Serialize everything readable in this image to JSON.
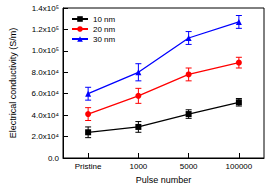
{
  "chart_data": {
    "type": "line",
    "x_label": "Pulse number",
    "y_label": "Electrical conductivity (S/m)",
    "categories": [
      "Pristine",
      "1000",
      "5000",
      "100000"
    ],
    "ylim": [
      0,
      140000
    ],
    "yticks": [
      {
        "value": 0,
        "label": "0.0"
      },
      {
        "value": 20000,
        "label": "2.0x10⁴"
      },
      {
        "value": 40000,
        "label": "4.0x10⁴"
      },
      {
        "value": 60000,
        "label": "6.0x10⁴"
      },
      {
        "value": 80000,
        "label": "8.0x10⁴"
      },
      {
        "value": 100000,
        "label": "1.0x10⁵"
      },
      {
        "value": 120000,
        "label": "1.2x10⁵"
      },
      {
        "value": 140000,
        "label": "1.4x10⁵"
      }
    ],
    "grid": false,
    "legend": "upper left",
    "series": [
      {
        "name": "10 nm",
        "color": "#000000",
        "marker": "square",
        "values": [
          24000,
          29000,
          41000,
          52000
        ],
        "errors": [
          5000,
          5000,
          4000,
          3500
        ]
      },
      {
        "name": "20 nm",
        "color": "#ff0000",
        "marker": "circle",
        "values": [
          41000,
          58000,
          78000,
          89000
        ],
        "errors": [
          6000,
          7000,
          6000,
          5000
        ]
      },
      {
        "name": "30 nm",
        "color": "#0000ff",
        "marker": "triangle",
        "values": [
          60000,
          80000,
          112000,
          127000
        ],
        "errors": [
          6000,
          8000,
          6000,
          6000
        ]
      }
    ]
  }
}
